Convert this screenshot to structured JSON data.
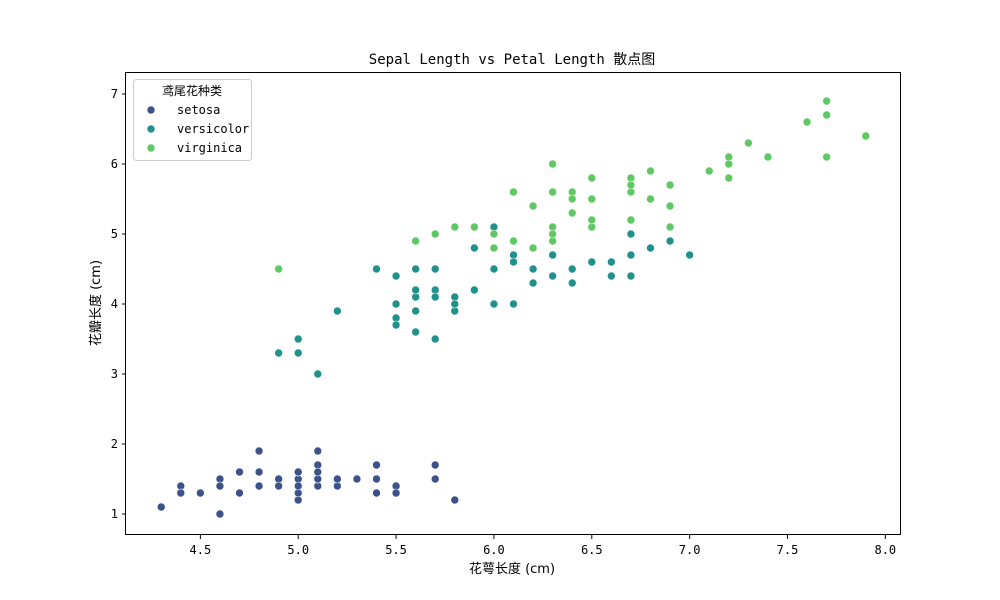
{
  "chart_data": {
    "type": "scatter",
    "title": "Sepal Length vs Petal Length 散点图",
    "xlabel": "花萼长度 (cm)",
    "ylabel": "花瓣长度 (cm)",
    "xlim": [
      4.12,
      8.08
    ],
    "ylim": [
      0.7,
      7.3
    ],
    "xticks": [
      "4.5",
      "5.0",
      "5.5",
      "6.0",
      "6.5",
      "7.0",
      "7.5",
      "8.0"
    ],
    "yticks": [
      "1",
      "2",
      "3",
      "4",
      "5",
      "6",
      "7"
    ],
    "grid": false,
    "legend": {
      "title": "鸢尾花种类",
      "placement": "top-left"
    },
    "series": [
      {
        "name": "setosa",
        "color": "#3b528b",
        "points": [
          [
            5.1,
            1.4
          ],
          [
            4.9,
            1.4
          ],
          [
            4.7,
            1.3
          ],
          [
            4.6,
            1.5
          ],
          [
            5.0,
            1.4
          ],
          [
            5.4,
            1.7
          ],
          [
            4.6,
            1.4
          ],
          [
            5.0,
            1.5
          ],
          [
            4.4,
            1.4
          ],
          [
            4.9,
            1.5
          ],
          [
            5.4,
            1.5
          ],
          [
            4.8,
            1.6
          ],
          [
            4.8,
            1.4
          ],
          [
            4.3,
            1.1
          ],
          [
            5.8,
            1.2
          ],
          [
            5.7,
            1.5
          ],
          [
            5.4,
            1.3
          ],
          [
            5.1,
            1.4
          ],
          [
            5.7,
            1.7
          ],
          [
            5.1,
            1.5
          ],
          [
            5.4,
            1.7
          ],
          [
            5.1,
            1.5
          ],
          [
            4.6,
            1.0
          ],
          [
            5.1,
            1.7
          ],
          [
            4.8,
            1.9
          ],
          [
            5.0,
            1.6
          ],
          [
            5.0,
            1.6
          ],
          [
            5.2,
            1.5
          ],
          [
            5.2,
            1.4
          ],
          [
            4.7,
            1.6
          ],
          [
            4.8,
            1.6
          ],
          [
            5.4,
            1.5
          ],
          [
            5.2,
            1.5
          ],
          [
            5.5,
            1.4
          ],
          [
            4.9,
            1.5
          ],
          [
            5.0,
            1.2
          ],
          [
            5.5,
            1.3
          ],
          [
            4.9,
            1.4
          ],
          [
            4.4,
            1.3
          ],
          [
            5.1,
            1.5
          ],
          [
            5.0,
            1.3
          ],
          [
            4.5,
            1.3
          ],
          [
            4.4,
            1.3
          ],
          [
            5.0,
            1.6
          ],
          [
            5.1,
            1.9
          ],
          [
            4.8,
            1.4
          ],
          [
            5.1,
            1.6
          ],
          [
            4.6,
            1.4
          ],
          [
            5.3,
            1.5
          ],
          [
            5.0,
            1.4
          ]
        ]
      },
      {
        "name": "versicolor",
        "color": "#21918c",
        "points": [
          [
            7.0,
            4.7
          ],
          [
            6.4,
            4.5
          ],
          [
            6.9,
            4.9
          ],
          [
            5.5,
            4.0
          ],
          [
            6.5,
            4.6
          ],
          [
            5.7,
            4.5
          ],
          [
            6.3,
            4.7
          ],
          [
            4.9,
            3.3
          ],
          [
            6.6,
            4.6
          ],
          [
            5.2,
            3.9
          ],
          [
            5.0,
            3.5
          ],
          [
            5.9,
            4.2
          ],
          [
            6.0,
            4.0
          ],
          [
            6.1,
            4.7
          ],
          [
            5.6,
            3.6
          ],
          [
            6.7,
            4.4
          ],
          [
            5.6,
            4.5
          ],
          [
            5.8,
            4.1
          ],
          [
            6.2,
            4.5
          ],
          [
            5.6,
            3.9
          ],
          [
            5.9,
            4.8
          ],
          [
            6.1,
            4.0
          ],
          [
            6.3,
            4.9
          ],
          [
            6.1,
            4.7
          ],
          [
            6.4,
            4.3
          ],
          [
            6.6,
            4.4
          ],
          [
            6.8,
            4.8
          ],
          [
            6.7,
            5.0
          ],
          [
            6.0,
            4.5
          ],
          [
            5.7,
            3.5
          ],
          [
            5.5,
            3.8
          ],
          [
            5.5,
            3.7
          ],
          [
            5.8,
            3.9
          ],
          [
            6.0,
            5.1
          ],
          [
            5.4,
            4.5
          ],
          [
            6.0,
            4.5
          ],
          [
            6.7,
            4.7
          ],
          [
            6.3,
            4.4
          ],
          [
            5.6,
            4.1
          ],
          [
            5.5,
            4.0
          ],
          [
            5.5,
            4.4
          ],
          [
            6.1,
            4.6
          ],
          [
            5.8,
            4.0
          ],
          [
            5.0,
            3.3
          ],
          [
            5.6,
            4.2
          ],
          [
            5.7,
            4.2
          ],
          [
            5.7,
            4.2
          ],
          [
            6.2,
            4.3
          ],
          [
            5.1,
            3.0
          ],
          [
            5.7,
            4.1
          ]
        ]
      },
      {
        "name": "virginica",
        "color": "#5ec962",
        "points": [
          [
            6.3,
            6.0
          ],
          [
            5.8,
            5.1
          ],
          [
            7.1,
            5.9
          ],
          [
            6.3,
            5.6
          ],
          [
            6.5,
            5.8
          ],
          [
            7.6,
            6.6
          ],
          [
            4.9,
            4.5
          ],
          [
            7.3,
            6.3
          ],
          [
            6.7,
            5.8
          ],
          [
            7.2,
            6.1
          ],
          [
            6.5,
            5.1
          ],
          [
            6.4,
            5.3
          ],
          [
            6.8,
            5.5
          ],
          [
            5.7,
            5.0
          ],
          [
            5.8,
            5.1
          ],
          [
            6.4,
            5.3
          ],
          [
            6.5,
            5.5
          ],
          [
            7.7,
            6.7
          ],
          [
            7.7,
            6.9
          ],
          [
            6.0,
            5.0
          ],
          [
            6.9,
            5.7
          ],
          [
            5.6,
            4.9
          ],
          [
            7.7,
            6.7
          ],
          [
            6.3,
            4.9
          ],
          [
            6.7,
            5.7
          ],
          [
            7.2,
            6.0
          ],
          [
            6.2,
            4.8
          ],
          [
            6.1,
            4.9
          ],
          [
            6.4,
            5.6
          ],
          [
            7.2,
            5.8
          ],
          [
            7.4,
            6.1
          ],
          [
            7.9,
            6.4
          ],
          [
            6.4,
            5.6
          ],
          [
            6.3,
            5.1
          ],
          [
            6.1,
            5.6
          ],
          [
            7.7,
            6.1
          ],
          [
            6.3,
            5.6
          ],
          [
            6.4,
            5.5
          ],
          [
            6.0,
            4.8
          ],
          [
            6.9,
            5.4
          ],
          [
            6.7,
            5.6
          ],
          [
            6.9,
            5.1
          ],
          [
            5.8,
            5.1
          ],
          [
            6.8,
            5.9
          ],
          [
            6.7,
            5.7
          ],
          [
            6.7,
            5.2
          ],
          [
            6.3,
            5.0
          ],
          [
            6.5,
            5.2
          ],
          [
            6.2,
            5.4
          ],
          [
            5.9,
            5.1
          ]
        ]
      }
    ]
  }
}
